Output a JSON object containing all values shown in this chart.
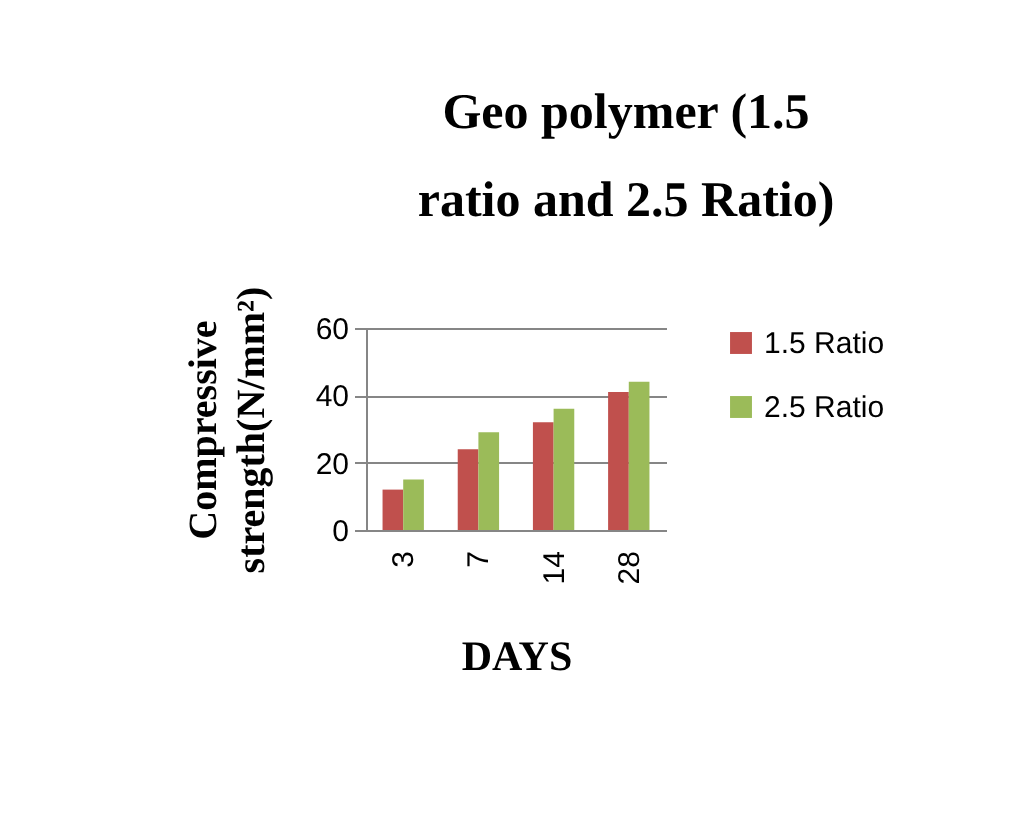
{
  "chart_data": {
    "type": "bar",
    "title": "Geo polymer (1.5 ratio and 2.5 Ratio)",
    "xlabel": "DAYS",
    "ylabel": "Compressive strength(N/mm²)",
    "categories": [
      "3",
      "7",
      "14",
      "28"
    ],
    "series": [
      {
        "name": "1.5 Ratio",
        "color": "#c0504d",
        "values": [
          12,
          24,
          32,
          41
        ]
      },
      {
        "name": "2.5 Ratio",
        "color": "#9bbb59",
        "values": [
          15,
          29,
          36,
          44
        ]
      }
    ],
    "ylim": [
      0,
      60
    ],
    "yticks": [
      0,
      20,
      40,
      60
    ],
    "grid": "y",
    "legend": "right"
  }
}
